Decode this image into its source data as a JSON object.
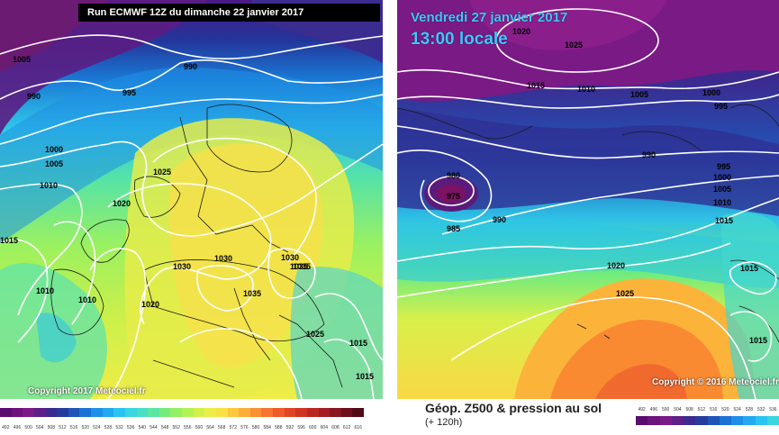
{
  "left_map": {
    "banner": "Run ECMWF 12Z du dimanche 22 janvier 2017",
    "copyright": "Copyright 2017 Meteociel.fr",
    "isobar_labels": [
      "1005",
      "990",
      "990",
      "995",
      "1000",
      "1005",
      "1010",
      "1025",
      "1020",
      "1015",
      "1010",
      "1010",
      "1020",
      "1030",
      "1030",
      "1035",
      "1035",
      "1030",
      "1025",
      "1015",
      "1015",
      "1035"
    ]
  },
  "right_map": {
    "valid_date": "Vendredi 27 janvier 2017",
    "valid_time": "13:00 locale",
    "copyright": "Copyright © 2016 Meteociel.fr",
    "isobar_labels": [
      "1020",
      "1025",
      "1015",
      "1010",
      "1005",
      "1000",
      "995",
      "990",
      "995",
      "1000",
      "1005",
      "1010",
      "1015",
      "980",
      "975",
      "990",
      "985",
      "1020",
      "1025",
      "1015",
      "1015"
    ]
  },
  "legend": {
    "title": "Géop. Z500 & pression au sol",
    "subtitle": "(+ 120h)",
    "scale_values": [
      "492",
      "496",
      "500",
      "504",
      "508",
      "512",
      "516",
      "520",
      "524",
      "528",
      "532",
      "536",
      "540",
      "544",
      "548",
      "552",
      "556",
      "560",
      "564",
      "568",
      "572",
      "576",
      "580",
      "584",
      "588",
      "592",
      "596",
      "600",
      "604",
      "608",
      "612",
      "616"
    ],
    "scale_colors": [
      "#5a0d6e",
      "#6e127c",
      "#7d1a8a",
      "#5e1f86",
      "#3b2a8f",
      "#243c9e",
      "#1f55b8",
      "#1b72d6",
      "#1e8fe8",
      "#22a9f0",
      "#2bc4f2",
      "#3ad6e0",
      "#48dfc3",
      "#5ce6a0",
      "#74ec7c",
      "#92f063",
      "#b3f253",
      "#d2f14a",
      "#ecee46",
      "#f9e044",
      "#fcc83f",
      "#fdad39",
      "#fc9033",
      "#f7742e",
      "#ee5a29",
      "#e14525",
      "#cf3423",
      "#b92722",
      "#a11d21",
      "#86161f",
      "#6c1019",
      "#4f0b13"
    ]
  },
  "colors": {
    "isobar": "#ffffff",
    "coast": "#1a1a1a"
  }
}
